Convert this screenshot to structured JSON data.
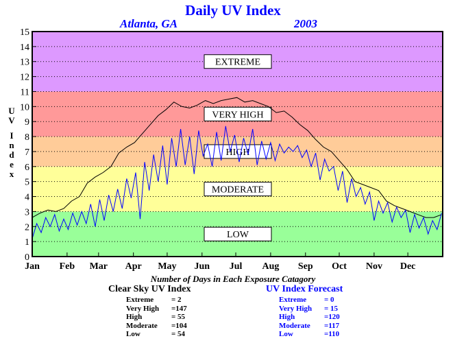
{
  "title": "Daily UV Index",
  "location": "Atlanta, GA",
  "year": "2003",
  "counts_title": "Number of Days in Each Exposure Catagory",
  "clear_sky": {
    "heading": "Clear Sky UV Index",
    "rows": [
      {
        "name": "Extreme",
        "value": "=    2"
      },
      {
        "name": "Very High",
        "value": "=147"
      },
      {
        "name": "High",
        "value": "=  55"
      },
      {
        "name": "Moderate",
        "value": "=104"
      },
      {
        "name": "Low",
        "value": "=  54"
      }
    ]
  },
  "forecast": {
    "heading": "UV Index Forecast",
    "rows": [
      {
        "name": "Extreme",
        "value": "=    0"
      },
      {
        "name": "Very High",
        "value": "=  15"
      },
      {
        "name": "High",
        "value": "=120"
      },
      {
        "name": "Moderate",
        "value": "=117"
      },
      {
        "name": "Low",
        "value": "=110"
      }
    ]
  },
  "chart_data": {
    "type": "line",
    "title": "Daily UV Index",
    "subtitle": "Atlanta, GA   2003",
    "xlabel": "",
    "ylabel": "UV Index",
    "ylim": [
      0,
      15
    ],
    "yticks": [
      "0",
      "1",
      "2",
      "3",
      "4",
      "5",
      "6",
      "7",
      "8",
      "9",
      "10",
      "11",
      "12",
      "13",
      "14",
      "15"
    ],
    "x_tick_labels": [
      "Jan",
      "Feb",
      "Mar",
      "Apr",
      "May",
      "Jun",
      "Jul",
      "Aug",
      "Sep",
      "Oct",
      "Nov",
      "Dec"
    ],
    "x_tick_days": [
      1,
      32,
      60,
      91,
      121,
      152,
      182,
      213,
      244,
      274,
      305,
      335
    ],
    "grid": true,
    "bands": [
      {
        "label": "LOW",
        "from": 0,
        "to": 3,
        "color": "#99ff99"
      },
      {
        "label": "MODERATE",
        "from": 3,
        "to": 6,
        "color": "#ffff99"
      },
      {
        "label": "HIGH",
        "from": 6,
        "to": 8,
        "color": "#ffcc99"
      },
      {
        "label": "VERY HIGH",
        "from": 8,
        "to": 11,
        "color": "#ff9999"
      },
      {
        "label": "EXTREME",
        "from": 11,
        "to": 15,
        "color": "#dd99ff"
      }
    ],
    "series": [
      {
        "name": "Clear Sky UV Index",
        "color": "#000000",
        "points": [
          [
            1,
            2.6
          ],
          [
            8,
            2.9
          ],
          [
            15,
            3.1
          ],
          [
            22,
            3.0
          ],
          [
            29,
            3.2
          ],
          [
            36,
            3.7
          ],
          [
            43,
            4.0
          ],
          [
            50,
            4.9
          ],
          [
            57,
            5.3
          ],
          [
            64,
            5.6
          ],
          [
            71,
            6.0
          ],
          [
            78,
            6.9
          ],
          [
            85,
            7.3
          ],
          [
            92,
            7.6
          ],
          [
            99,
            8.2
          ],
          [
            106,
            8.8
          ],
          [
            113,
            9.4
          ],
          [
            120,
            9.8
          ],
          [
            127,
            10.3
          ],
          [
            134,
            10.0
          ],
          [
            141,
            9.9
          ],
          [
            148,
            10.1
          ],
          [
            155,
            10.4
          ],
          [
            162,
            10.2
          ],
          [
            169,
            10.4
          ],
          [
            176,
            10.5
          ],
          [
            183,
            10.6
          ],
          [
            190,
            10.3
          ],
          [
            197,
            10.4
          ],
          [
            204,
            10.2
          ],
          [
            211,
            10.0
          ],
          [
            218,
            9.6
          ],
          [
            225,
            9.7
          ],
          [
            232,
            9.3
          ],
          [
            239,
            8.8
          ],
          [
            246,
            8.4
          ],
          [
            253,
            7.8
          ],
          [
            260,
            7.3
          ],
          [
            267,
            7.0
          ],
          [
            274,
            6.4
          ],
          [
            281,
            5.8
          ],
          [
            288,
            5.0
          ],
          [
            295,
            4.8
          ],
          [
            302,
            4.6
          ],
          [
            309,
            4.4
          ],
          [
            316,
            3.7
          ],
          [
            323,
            3.4
          ],
          [
            330,
            3.2
          ],
          [
            337,
            3.0
          ],
          [
            344,
            2.8
          ],
          [
            351,
            2.6
          ],
          [
            358,
            2.6
          ],
          [
            365,
            2.8
          ]
        ]
      },
      {
        "name": "UV Index Forecast",
        "color": "#0000ff",
        "points": [
          [
            1,
            1.2
          ],
          [
            5,
            2.2
          ],
          [
            9,
            1.6
          ],
          [
            13,
            2.6
          ],
          [
            17,
            2.0
          ],
          [
            21,
            2.8
          ],
          [
            25,
            1.7
          ],
          [
            29,
            2.5
          ],
          [
            33,
            1.8
          ],
          [
            37,
            2.9
          ],
          [
            41,
            2.1
          ],
          [
            45,
            3.0
          ],
          [
            49,
            2.2
          ],
          [
            53,
            3.5
          ],
          [
            57,
            2.0
          ],
          [
            61,
            3.8
          ],
          [
            65,
            2.4
          ],
          [
            69,
            4.1
          ],
          [
            73,
            3.0
          ],
          [
            77,
            4.5
          ],
          [
            81,
            3.2
          ],
          [
            85,
            5.2
          ],
          [
            89,
            3.9
          ],
          [
            93,
            5.6
          ],
          [
            97,
            2.5
          ],
          [
            101,
            6.3
          ],
          [
            105,
            4.4
          ],
          [
            109,
            6.8
          ],
          [
            113,
            5.0
          ],
          [
            117,
            7.4
          ],
          [
            121,
            4.8
          ],
          [
            125,
            7.9
          ],
          [
            129,
            6.0
          ],
          [
            133,
            8.5
          ],
          [
            137,
            6.1
          ],
          [
            141,
            8.0
          ],
          [
            145,
            5.5
          ],
          [
            149,
            8.4
          ],
          [
            153,
            6.7
          ],
          [
            157,
            7.5
          ],
          [
            161,
            6.0
          ],
          [
            165,
            8.3
          ],
          [
            169,
            6.4
          ],
          [
            173,
            8.7
          ],
          [
            177,
            7.0
          ],
          [
            181,
            8.1
          ],
          [
            185,
            6.3
          ],
          [
            189,
            7.9
          ],
          [
            193,
            6.8
          ],
          [
            197,
            8.5
          ],
          [
            201,
            6.1
          ],
          [
            205,
            7.7
          ],
          [
            209,
            6.5
          ],
          [
            213,
            7.6
          ],
          [
            217,
            6.4
          ],
          [
            221,
            7.5
          ],
          [
            225,
            6.9
          ],
          [
            229,
            7.3
          ],
          [
            233,
            7.0
          ],
          [
            237,
            7.4
          ],
          [
            241,
            6.6
          ],
          [
            245,
            7.1
          ],
          [
            249,
            6.0
          ],
          [
            253,
            6.9
          ],
          [
            257,
            5.1
          ],
          [
            261,
            6.5
          ],
          [
            265,
            5.7
          ],
          [
            269,
            6.0
          ],
          [
            273,
            4.4
          ],
          [
            277,
            5.7
          ],
          [
            281,
            3.6
          ],
          [
            285,
            5.2
          ],
          [
            289,
            4.0
          ],
          [
            293,
            4.6
          ],
          [
            297,
            3.5
          ],
          [
            301,
            4.3
          ],
          [
            305,
            2.4
          ],
          [
            309,
            3.7
          ],
          [
            313,
            2.9
          ],
          [
            317,
            3.6
          ],
          [
            321,
            2.3
          ],
          [
            325,
            3.3
          ],
          [
            329,
            2.6
          ],
          [
            333,
            3.1
          ],
          [
            337,
            1.6
          ],
          [
            341,
            2.8
          ],
          [
            345,
            1.9
          ],
          [
            349,
            2.6
          ],
          [
            353,
            1.5
          ],
          [
            357,
            2.4
          ],
          [
            361,
            1.8
          ],
          [
            365,
            2.9
          ]
        ]
      }
    ]
  }
}
